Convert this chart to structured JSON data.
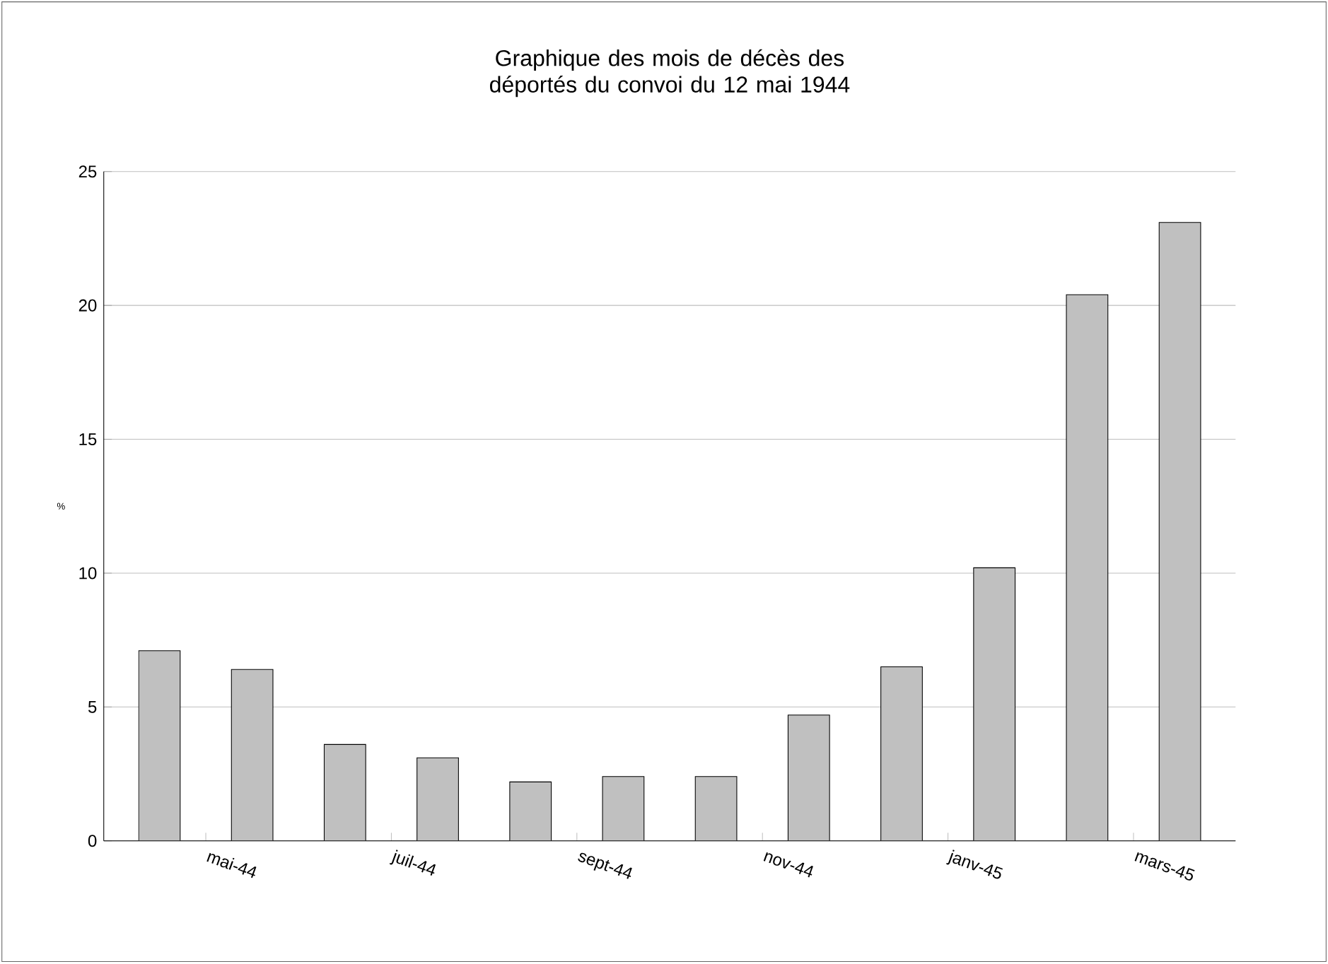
{
  "chart_data": {
    "type": "bar",
    "title": "Graphique des mois de décès des déportés du convoi du 12 mai 1944",
    "ylabel": "%",
    "categories": [
      "mai-44",
      null,
      "juil-44",
      null,
      "sept-44",
      null,
      "nov-44",
      null,
      "janv-45",
      null,
      "mars-45",
      null
    ],
    "values": [
      7.1,
      6.4,
      3.6,
      3.1,
      2.2,
      2.4,
      2.4,
      4.7,
      6.5,
      10.2,
      20.4,
      23.1
    ],
    "color": "#c0c0c0",
    "ylim": [
      0,
      25
    ],
    "yticks": [
      0,
      5,
      10,
      15,
      20,
      25
    ],
    "grid": "y"
  }
}
